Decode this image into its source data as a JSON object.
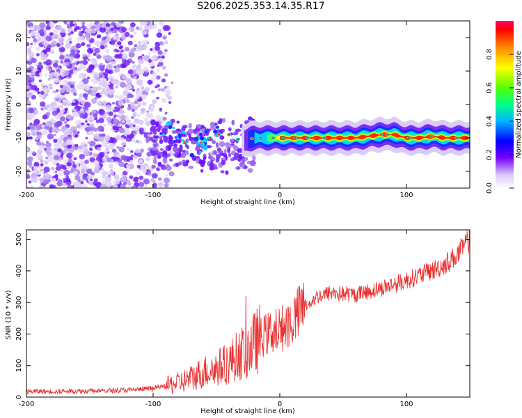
{
  "title": "S206.2025.353.14.35.R17",
  "chart_data": [
    {
      "type": "heatmap",
      "xlabel": "Height of straight line (km)",
      "ylabel": "Frequency (Hz)",
      "xlim": [
        -200,
        150
      ],
      "ylim": [
        -25,
        25
      ],
      "xticks": [
        -200,
        -100,
        0,
        100
      ],
      "xtick_labels": [
        "-200",
        "-100",
        "0",
        "100"
      ],
      "yticks": [
        -20,
        -10,
        0,
        10,
        20
      ],
      "ytick_labels": [
        "-20",
        "-10",
        "0",
        "10",
        "20"
      ],
      "colorbar": {
        "label": "Normalized spectral amplitude",
        "range": [
          0,
          1
        ],
        "ticks": [
          0.0,
          0.2,
          0.4,
          0.6,
          0.8
        ],
        "tick_labels": [
          "0.0",
          "0.2",
          "0.4",
          "0.6",
          "0.8"
        ]
      },
      "signal_track": {
        "description_values": "dominant frequency ridge",
        "x": [
          -90,
          -80,
          -70,
          -60,
          -50,
          -40,
          -30,
          -20,
          -10,
          0,
          10,
          20,
          30,
          40,
          50,
          60,
          70,
          80,
          90,
          100,
          110,
          120,
          130,
          140,
          150
        ],
        "y": [
          -7,
          -10,
          -13,
          -11,
          -9,
          -9,
          -11,
          -10,
          -10,
          -10,
          -10,
          -10,
          -10,
          -10,
          -10,
          -10,
          -9.5,
          -9,
          -9,
          -10,
          -10,
          -9.5,
          -10,
          -10,
          -10
        ]
      },
      "noise_region": {
        "x_from": -200,
        "x_to": -95,
        "y_from": -25,
        "y_to": 25
      }
    },
    {
      "type": "line",
      "xlabel": "Height of straight line (km)",
      "ylabel": "SNR (10 * v/v)",
      "xlim": [
        -200,
        150
      ],
      "ylim": [
        0,
        530
      ],
      "xticks": [
        -200,
        -100,
        0,
        100
      ],
      "xtick_labels": [
        "-200",
        "-100",
        "0",
        "100"
      ],
      "yticks": [
        0,
        100,
        200,
        300,
        400,
        500
      ],
      "ytick_labels": [
        "0",
        "100",
        "200",
        "300",
        "400",
        "500"
      ],
      "series": [
        {
          "name": "SNR",
          "color": "#e83232",
          "x": [
            -200,
            -180,
            -160,
            -140,
            -120,
            -100,
            -90,
            -80,
            -70,
            -60,
            -50,
            -40,
            -30,
            -20,
            -15,
            -10,
            -5,
            0,
            10,
            20,
            30,
            40,
            60,
            80,
            100,
            110,
            120,
            130,
            140,
            150
          ],
          "y": [
            18,
            18,
            19,
            20,
            22,
            28,
            35,
            45,
            60,
            80,
            90,
            110,
            140,
            170,
            190,
            200,
            210,
            215,
            240,
            290,
            320,
            330,
            325,
            345,
            370,
            385,
            400,
            420,
            450,
            500
          ]
        }
      ]
    }
  ]
}
